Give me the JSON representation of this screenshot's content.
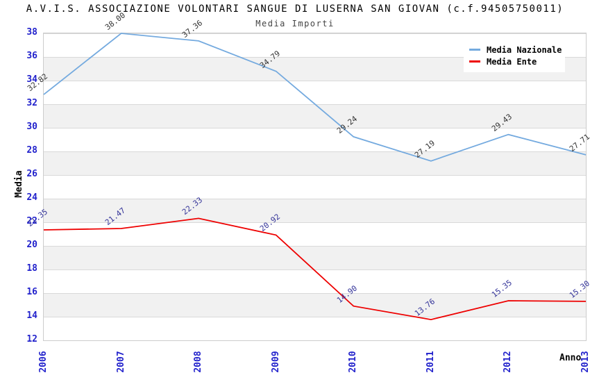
{
  "chart_data": {
    "type": "line",
    "title": "A.V.I.S. ASSOCIAZIONE VOLONTARI SANGUE DI LUSERNA SAN GIOVAN (c.f.94505750011)",
    "subtitle": "Media Importi",
    "xlabel": "Anno",
    "ylabel": "Media",
    "x": [
      "2006",
      "2007",
      "2008",
      "2009",
      "2010",
      "2011",
      "2012",
      "2013"
    ],
    "ylim": [
      12,
      38
    ],
    "ytick_step": 2,
    "grid": "alternating-horizontal-bands",
    "legend_position": "top-right",
    "colors": {
      "axis_labels": "#2222cc",
      "band_fill": "#f1f1f1",
      "plot_border": "#cccccc"
    },
    "series": [
      {
        "name": "Media Nazionale",
        "color": "#74aadf",
        "label_color": "#333333",
        "values": [
          32.82,
          38.0,
          37.36,
          34.79,
          29.24,
          27.19,
          29.43,
          27.71
        ]
      },
      {
        "name": "Media Ente",
        "color": "#ee0000",
        "label_color": "#333399",
        "values": [
          21.35,
          21.47,
          22.33,
          20.92,
          14.9,
          13.76,
          15.35,
          15.3
        ]
      }
    ]
  }
}
